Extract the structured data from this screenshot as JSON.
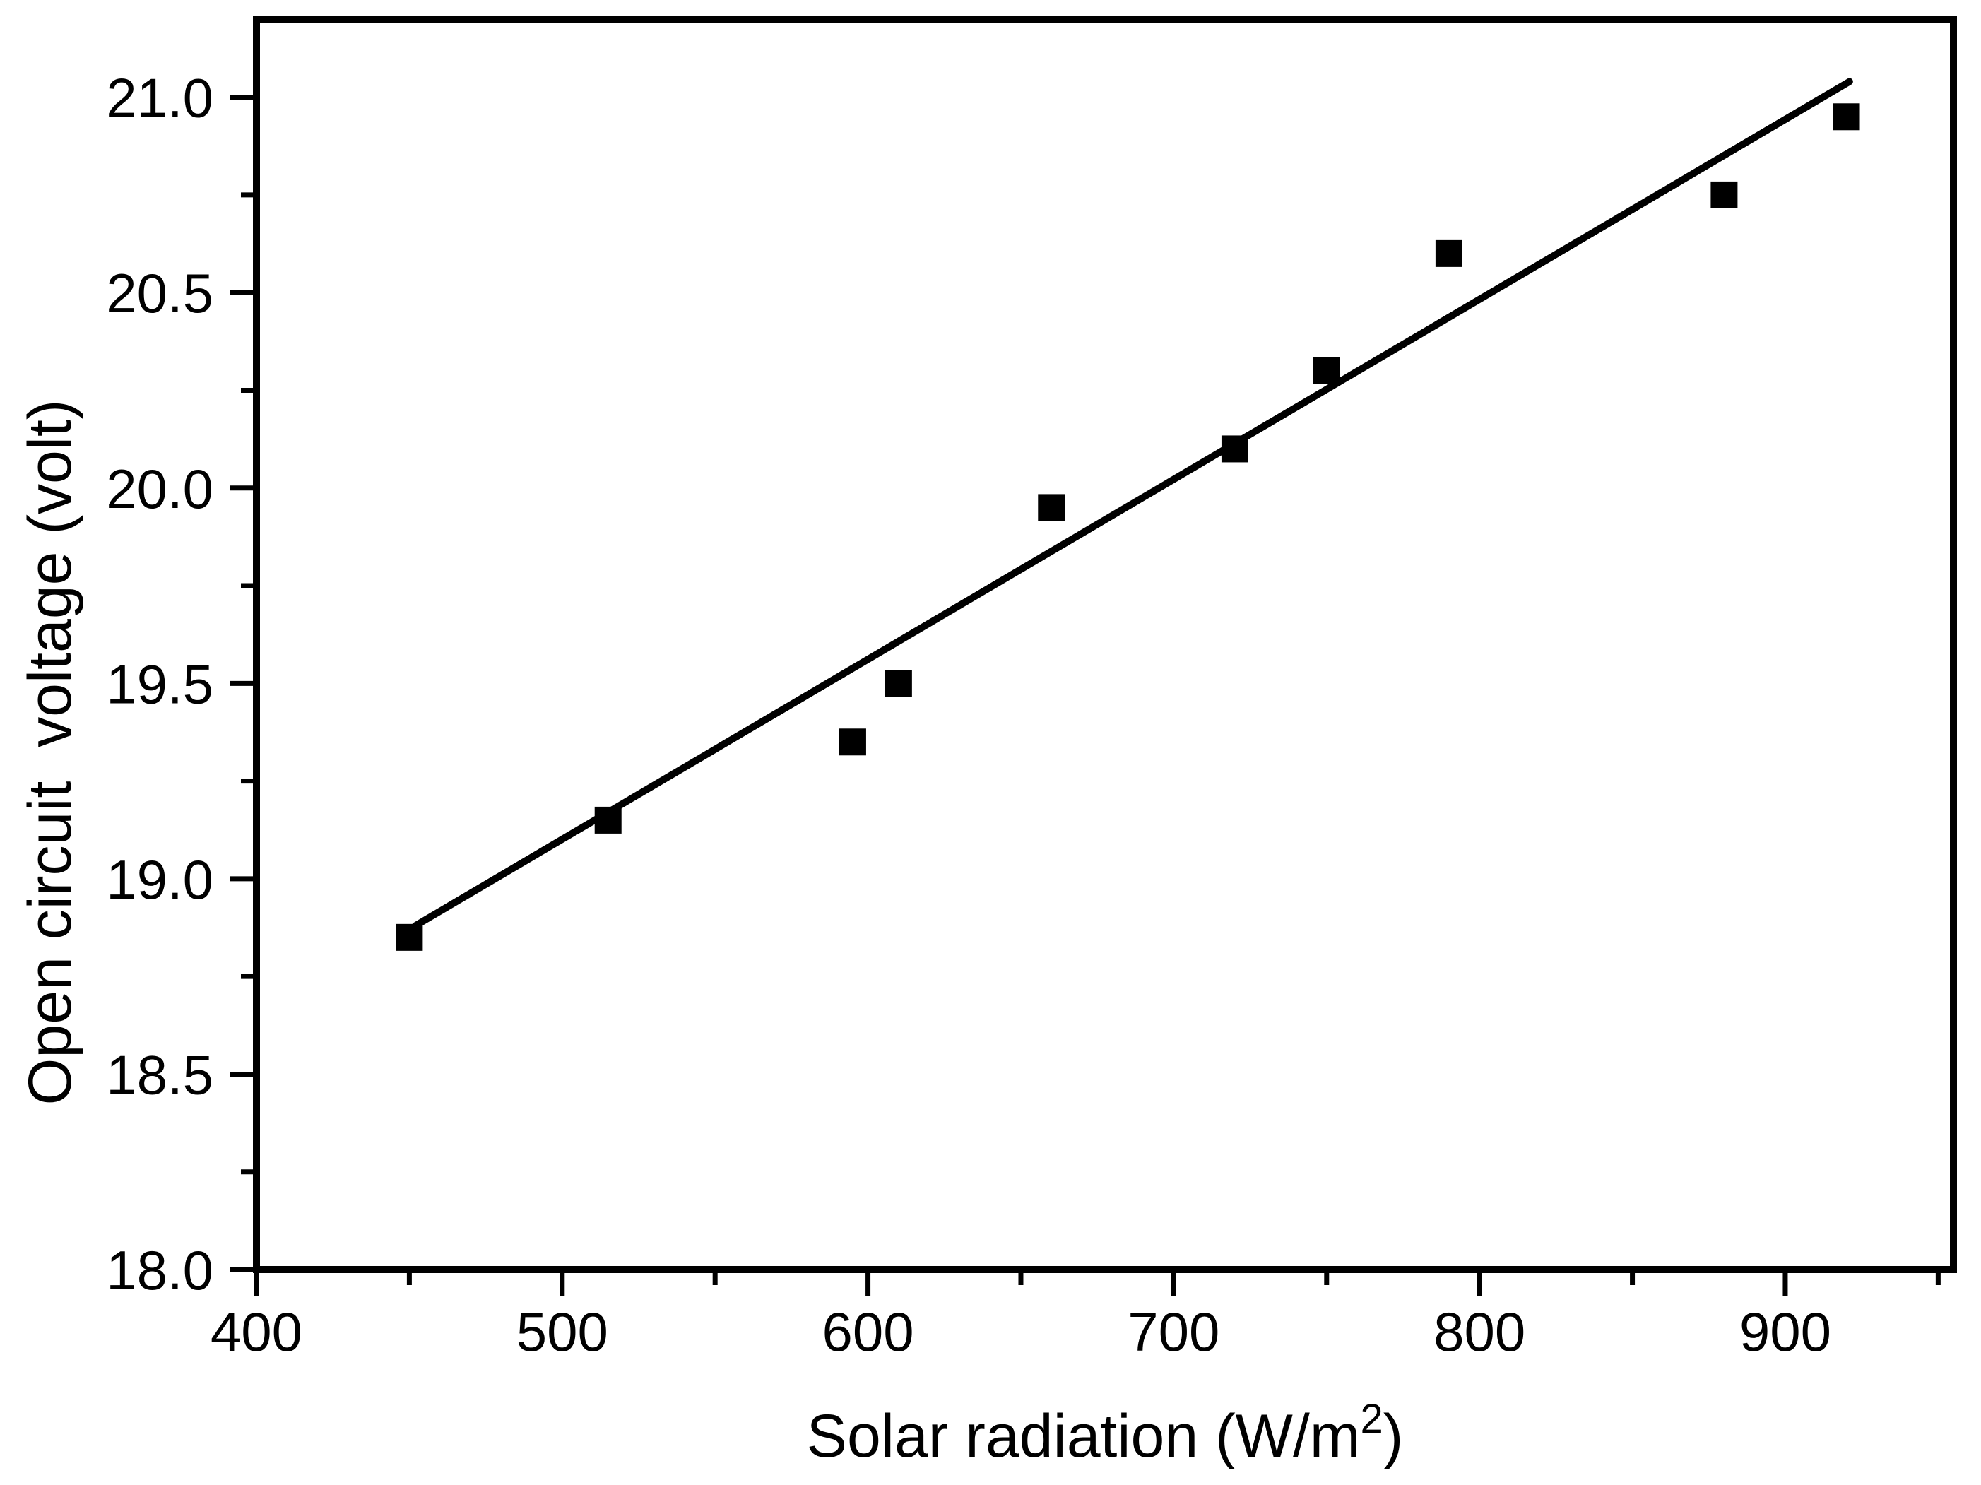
{
  "figure": {
    "background": "#ffffff",
    "ink": "#000000"
  },
  "chart_data": {
    "type": "scatter",
    "title": "",
    "xlabel": "Solar radiation (W/m²)",
    "xlabel_parts": {
      "prefix": "Solar radiation (W/m",
      "sup": "2",
      "suffix": ")"
    },
    "ylabel": "Open circuit  voltage (volt)",
    "xlim": [
      400,
      955
    ],
    "ylim": [
      18.0,
      21.2
    ],
    "grid": false,
    "legend": null,
    "x_major_ticks": [
      400,
      500,
      600,
      700,
      800,
      900
    ],
    "x_tick_labels": [
      "400",
      "500",
      "600",
      "700",
      "800",
      "900"
    ],
    "x_minor_ticks": [
      450,
      550,
      650,
      750,
      850,
      950
    ],
    "y_major_ticks": [
      18.0,
      18.5,
      19.0,
      19.5,
      20.0,
      20.5,
      21.0
    ],
    "y_tick_labels": [
      "18.0",
      "18.5",
      "19.0",
      "19.5",
      "20.0",
      "20.5",
      "21.0"
    ],
    "y_minor_ticks": [
      18.25,
      18.75,
      19.25,
      19.75,
      20.25,
      20.75
    ],
    "series": [
      {
        "name": "measured-points",
        "type": "scatter",
        "marker": "square",
        "color": "#000000",
        "points": [
          [
            450,
            18.85
          ],
          [
            515,
            19.15
          ],
          [
            595,
            19.35
          ],
          [
            610,
            19.5
          ],
          [
            660,
            19.95
          ],
          [
            720,
            20.1
          ],
          [
            750,
            20.3
          ],
          [
            790,
            20.6
          ],
          [
            880,
            20.75
          ],
          [
            920,
            20.95
          ]
        ]
      },
      {
        "name": "linear-fit",
        "type": "line",
        "color": "#000000",
        "x1": 452,
        "y1": 18.88,
        "x2": 921,
        "y2": 21.04
      }
    ]
  }
}
